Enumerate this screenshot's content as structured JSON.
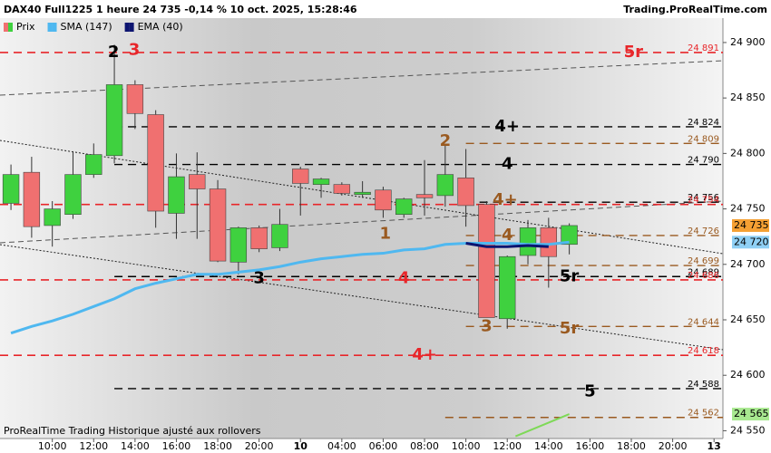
{
  "header": {
    "title": "DAX40 Full1225 1 heure 24 735 -0,14 % 10 oct. 2025, 15:28:46",
    "source": "Trading.ProRealTime.com"
  },
  "footer": "ProRealTime Trading  Historique ajusté aux rollovers",
  "chart_data": {
    "type": "candlestick",
    "name": "Prix",
    "up_color": "#3fd13f",
    "down_color": "#f07070",
    "xlim": [
      -0.53,
      34.43
    ],
    "ylim": [
      24543,
      24922
    ],
    "xticks": [
      {
        "value": 2,
        "label": "10:00"
      },
      {
        "value": 4,
        "label": "12:00"
      },
      {
        "value": 6,
        "label": "14:00"
      },
      {
        "value": 8,
        "label": "16:00"
      },
      {
        "value": 10,
        "label": "18:00"
      },
      {
        "value": 12,
        "label": "20:00"
      },
      {
        "value": 14,
        "label": "10"
      },
      {
        "value": 16,
        "label": "04:00"
      },
      {
        "value": 18,
        "label": "06:00"
      },
      {
        "value": 20,
        "label": "08:00"
      },
      {
        "value": 22,
        "label": "10:00"
      },
      {
        "value": 24,
        "label": "12:00"
      },
      {
        "value": 26,
        "label": "14:00"
      },
      {
        "value": 28,
        "label": "16:00"
      },
      {
        "value": 30,
        "label": "18:00"
      },
      {
        "value": 32,
        "label": "20:00"
      },
      {
        "value": 34,
        "label": "13"
      }
    ],
    "yticks": [
      {
        "value": 24550,
        "label": "24 550"
      },
      {
        "value": 24600,
        "label": "24 600"
      },
      {
        "value": 24650,
        "label": "24 650"
      },
      {
        "value": 24700,
        "label": "24 700"
      },
      {
        "value": 24750,
        "label": "24 750"
      },
      {
        "value": 24800,
        "label": "24 800"
      },
      {
        "value": 24850,
        "label": "24 850"
      },
      {
        "value": 24900,
        "label": "24 900"
      }
    ],
    "x": [
      0,
      1,
      2,
      3,
      4,
      5,
      6,
      7,
      8,
      9,
      10,
      11,
      12,
      13,
      14,
      15,
      16,
      17,
      18,
      19,
      20,
      21,
      22,
      23,
      24,
      25,
      26,
      27
    ],
    "open": [
      24755,
      24783,
      24735,
      24745,
      24781,
      24798,
      24862,
      24835,
      24746,
      24781,
      24768,
      24702,
      24733,
      24715,
      24786,
      24772,
      24772,
      24763,
      24767,
      24745,
      24763,
      24762,
      24778,
      24754,
      24651,
      24708,
      24733,
      24718
    ],
    "high": [
      24790,
      24797,
      24757,
      24802,
      24809,
      24898,
      24866,
      24839,
      24800,
      24801,
      24776,
      24734,
      24735,
      24750,
      24788,
      24778,
      24774,
      24775,
      24770,
      24760,
      24794,
      24807,
      24804,
      24757,
      24708,
      24740,
      24742,
      24737
    ],
    "low": [
      24749,
      24724,
      24716,
      24741,
      24778,
      24791,
      24822,
      24733,
      24723,
      24723,
      24702,
      24691,
      24711,
      24712,
      24744,
      24760,
      24762,
      24760,
      24742,
      24742,
      24744,
      24752,
      24734,
      24652,
      24642,
      24700,
      24679,
      24709
    ],
    "close": [
      24781,
      24734,
      24750,
      24781,
      24799,
      24862,
      24836,
      24748,
      24779,
      24768,
      24703,
      24733,
      24714,
      24736,
      24773,
      24777,
      24764,
      24765,
      24749,
      24759,
      24760,
      24781,
      24753,
      24652,
      24707,
      24733,
      24707,
      24735
    ],
    "series": [
      {
        "name": "SMA (147)",
        "color": "#4fb8f0",
        "values": [
          24638,
          24644,
          24649,
          24655,
          24662,
          24669,
          24678,
          24683,
          24687,
          24691,
          24691,
          24693,
          24695,
          24698,
          24702,
          24705,
          24707,
          24709,
          24710,
          24713,
          24714,
          24718,
          24719,
          24719,
          24719,
          24718,
          24718,
          24720
        ]
      },
      {
        "name": "EMA (40)",
        "color": "#0c1470",
        "values": [
          null,
          null,
          null,
          null,
          null,
          null,
          null,
          null,
          null,
          null,
          null,
          null,
          null,
          null,
          null,
          null,
          null,
          null,
          null,
          null,
          null,
          null,
          24719,
          24716,
          24716,
          24717,
          24716,
          null
        ]
      }
    ],
    "segments": [
      {
        "color": "#7ed957",
        "x": [
          24.4,
          27
        ],
        "values": [
          24545,
          24565
        ]
      }
    ],
    "levels": [
      {
        "value": 24891,
        "label": "24 891",
        "color": "#e8262a"
      },
      {
        "value": 24824,
        "label": "24 824",
        "color": "#000000",
        "from": 5
      },
      {
        "value": 24809,
        "label": "24 809",
        "color": "#9a5a20",
        "from": 22
      },
      {
        "value": 24790,
        "label": "24 790",
        "color": "#000000",
        "from": 5
      },
      {
        "value": 24756,
        "label": "24 756",
        "color": "#000000",
        "from": 22
      },
      {
        "value": 24754,
        "label": "24 754",
        "color": "#e8262a"
      },
      {
        "value": 24726,
        "label": "24 726",
        "color": "#9a5a20",
        "from": 22
      },
      {
        "value": 24699,
        "label": "24 699",
        "color": "#9a5a20",
        "from": 22
      },
      {
        "value": 24689,
        "label": "24 689",
        "color": "#000000",
        "from": 5
      },
      {
        "value": 24686,
        "label": "24 686",
        "color": "#e8262a"
      },
      {
        "value": 24644,
        "label": "24 644",
        "color": "#9a5a20",
        "from": 22
      },
      {
        "value": 24618,
        "label": "24 618",
        "color": "#e8262a"
      },
      {
        "value": 24588,
        "label": "24 588",
        "color": "#000000",
        "from": 5
      },
      {
        "value": 24562,
        "label": "24 562",
        "color": "#9a5a20",
        "from": 21
      }
    ],
    "markers": [
      {
        "text": "2",
        "x": 4.96,
        "y": 24891,
        "color": "#000000"
      },
      {
        "text": "3",
        "x": 5.96,
        "y": 24893,
        "color": "#e8262a"
      },
      {
        "text": "5r",
        "x": 30.1,
        "y": 24891,
        "color": "#e8262a"
      },
      {
        "text": "4+",
        "x": 24,
        "y": 24824,
        "color": "#000000"
      },
      {
        "text": "2",
        "x": 21,
        "y": 24811,
        "color": "#9a5a20"
      },
      {
        "text": "4",
        "x": 24,
        "y": 24790,
        "color": "#000000"
      },
      {
        "text": "4+",
        "x": 23.9,
        "y": 24758,
        "color": "#9a5a20"
      },
      {
        "text": "1",
        "x": 18.1,
        "y": 24727,
        "color": "#9a5a20"
      },
      {
        "text": "4",
        "x": 24,
        "y": 24726,
        "color": "#9a5a20"
      },
      {
        "text": "3",
        "x": 12,
        "y": 24687,
        "color": "#000000"
      },
      {
        "text": "4",
        "x": 19,
        "y": 24687,
        "color": "#e8262a"
      },
      {
        "text": "5r",
        "x": 27,
        "y": 24689,
        "color": "#000000"
      },
      {
        "text": "3",
        "x": 23,
        "y": 24644,
        "color": "#9a5a20"
      },
      {
        "text": "5r",
        "x": 27,
        "y": 24642,
        "color": "#9a5a20"
      },
      {
        "text": "4+",
        "x": 20,
        "y": 24618,
        "color": "#e8262a"
      },
      {
        "text": "5",
        "x": 28,
        "y": 24585,
        "color": "#000000"
      }
    ],
    "price_labels": [
      {
        "value": 24735,
        "label": "24 735",
        "color": "#f5a033"
      },
      {
        "value": 24720,
        "label": "24 720",
        "color": "#8fd0f5"
      },
      {
        "value": 24565,
        "label": "24 565",
        "color": "#a8e890"
      }
    ]
  }
}
